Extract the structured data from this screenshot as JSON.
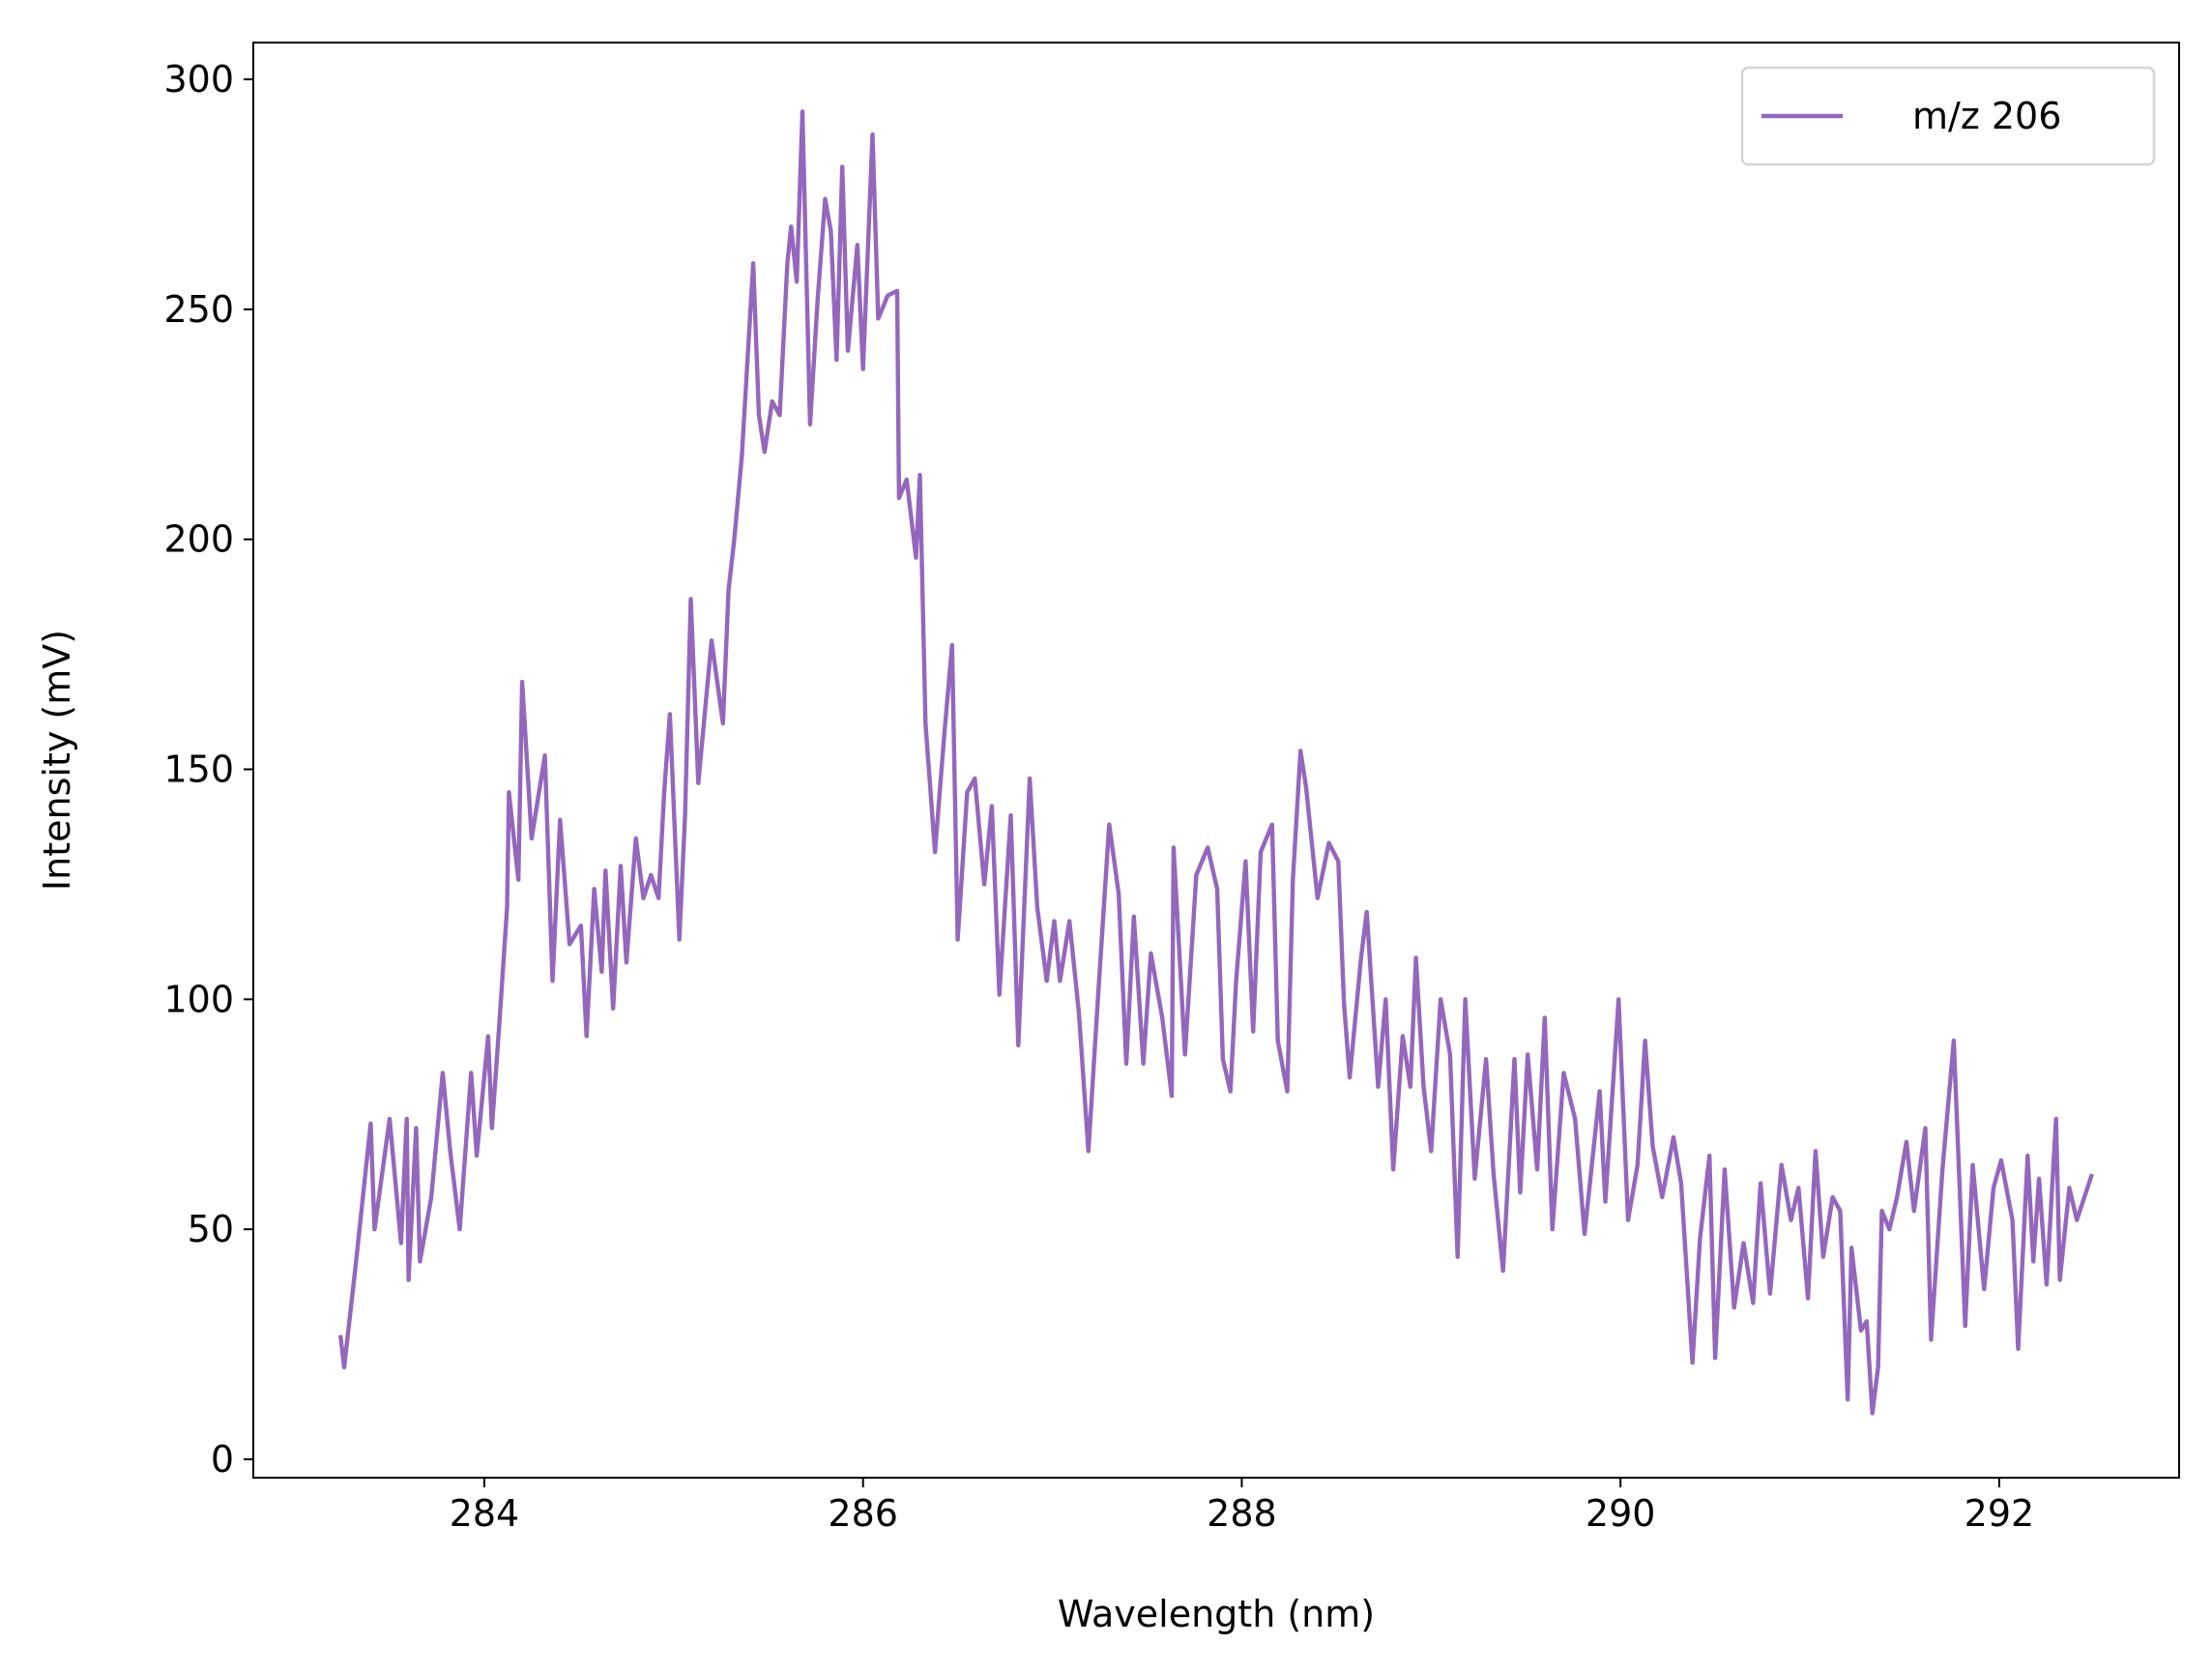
{
  "chart_data": {
    "type": "line",
    "xlabel": "Wavelength (nm)",
    "ylabel": "Intensity (mV)",
    "xlim": [
      282.78,
      292.95
    ],
    "ylim": [
      -4,
      308
    ],
    "xticks": [
      284,
      286,
      288,
      290,
      292
    ],
    "yticks": [
      0,
      50,
      100,
      150,
      200,
      250,
      300
    ],
    "legend": "upper right",
    "x": [
      283.24,
      283.26,
      283.32,
      283.4,
      283.42,
      283.5,
      283.56,
      283.59,
      283.6,
      283.64,
      283.66,
      283.72,
      283.78,
      283.82,
      283.87,
      283.93,
      283.96,
      284.02,
      284.04,
      284.08,
      284.12,
      284.13,
      284.18,
      284.2,
      284.25,
      284.32,
      284.36,
      284.4,
      284.45,
      284.51,
      284.54,
      284.58,
      284.62,
      284.64,
      284.68,
      284.72,
      284.75,
      284.8,
      284.84,
      284.88,
      284.92,
      284.95,
      284.98,
      285.03,
      285.06,
      285.09,
      285.13,
      285.2,
      285.26,
      285.29,
      285.32,
      285.36,
      285.42,
      285.45,
      285.48,
      285.52,
      285.56,
      285.6,
      285.62,
      285.65,
      285.68,
      285.72,
      285.76,
      285.8,
      285.83,
      285.86,
      285.89,
      285.92,
      285.97,
      286.0,
      286.05,
      286.08,
      286.13,
      286.18,
      286.19,
      286.23,
      286.28,
      286.3,
      286.33,
      286.38,
      286.43,
      286.47,
      286.5,
      286.55,
      286.59,
      286.64,
      286.68,
      286.72,
      286.78,
      286.82,
      286.88,
      286.92,
      286.97,
      287.01,
      287.04,
      287.09,
      287.14,
      287.19,
      287.24,
      287.3,
      287.35,
      287.39,
      287.43,
      287.48,
      287.52,
      287.58,
      287.63,
      287.64,
      287.7,
      287.76,
      287.82,
      287.87,
      287.9,
      287.94,
      287.97,
      288.02,
      288.06,
      288.1,
      288.16,
      288.19,
      288.24,
      288.27,
      288.31,
      288.34,
      288.4,
      288.46,
      288.51,
      288.54,
      288.57,
      288.63,
      288.66,
      288.72,
      288.76,
      288.8,
      288.85,
      288.89,
      288.92,
      288.96,
      289.0,
      289.05,
      289.1,
      289.14,
      289.18,
      289.23,
      289.29,
      289.33,
      289.38,
      289.44,
      289.47,
      289.51,
      289.56,
      289.6,
      289.64,
      289.7,
      289.76,
      289.81,
      289.89,
      289.92,
      289.99,
      290.04,
      290.09,
      290.13,
      290.17,
      290.22,
      290.28,
      290.32,
      290.38,
      290.42,
      290.47,
      290.5,
      290.55,
      290.6,
      290.65,
      290.7,
      290.74,
      290.79,
      290.85,
      290.9,
      290.94,
      290.99,
      291.03,
      291.07,
      291.12,
      291.16,
      291.2,
      291.22,
      291.27,
      291.3,
      291.33,
      291.36,
      291.38,
      291.42,
      291.46,
      291.51,
      291.55,
      291.61,
      291.64,
      291.7,
      291.76,
      291.82,
      291.86,
      291.92,
      291.97,
      292.01,
      292.07,
      292.1,
      292.15,
      292.18,
      292.21,
      292.25,
      292.3,
      292.32,
      292.37,
      292.41,
      292.49
    ],
    "series": [
      {
        "name": "m/z 206",
        "color": "#9467bd",
        "values": [
          27,
          20,
          42,
          73,
          50,
          74,
          47,
          74,
          39,
          72,
          43,
          57,
          84,
          67,
          50,
          84,
          66,
          92,
          72,
          95,
          120,
          145,
          126,
          169,
          135,
          153,
          104,
          139,
          112,
          116,
          92,
          124,
          106,
          128,
          98,
          129,
          108,
          135,
          122,
          127,
          122,
          145,
          162,
          113,
          140,
          187,
          147,
          178,
          160,
          189,
          200,
          218,
          260,
          227,
          219,
          230,
          227,
          260,
          268,
          256,
          293,
          225,
          252,
          274,
          267,
          239,
          281,
          241,
          264,
          237,
          288,
          248,
          253,
          254,
          209,
          213,
          196,
          214,
          160,
          132,
          158,
          177,
          113,
          145,
          148,
          125,
          142,
          101,
          140,
          90,
          148,
          120,
          104,
          117,
          104,
          117,
          97,
          67,
          100,
          138,
          123,
          86,
          118,
          86,
          110,
          96,
          79,
          133,
          88,
          127,
          133,
          124,
          87,
          80,
          104,
          130,
          93,
          132,
          138,
          91,
          80,
          126,
          154,
          146,
          122,
          134,
          130,
          99,
          83,
          109,
          119,
          81,
          100,
          63,
          92,
          81,
          109,
          81,
          67,
          100,
          88,
          44,
          100,
          61,
          87,
          62,
          41,
          87,
          58,
          88,
          63,
          96,
          50,
          84,
          74,
          49,
          80,
          56,
          100,
          52,
          64,
          91,
          68,
          57,
          70,
          60,
          21,
          48,
          66,
          22,
          63,
          33,
          47,
          34,
          60,
          36,
          64,
          52,
          59,
          35,
          67,
          44,
          57,
          54,
          13,
          46,
          28,
          30,
          10,
          20,
          54,
          50,
          57,
          69,
          54,
          72,
          26,
          63,
          91,
          29,
          64,
          37,
          59,
          65,
          52,
          24,
          66,
          43,
          61,
          38,
          74,
          39,
          59,
          52,
          62
        ]
      }
    ]
  }
}
